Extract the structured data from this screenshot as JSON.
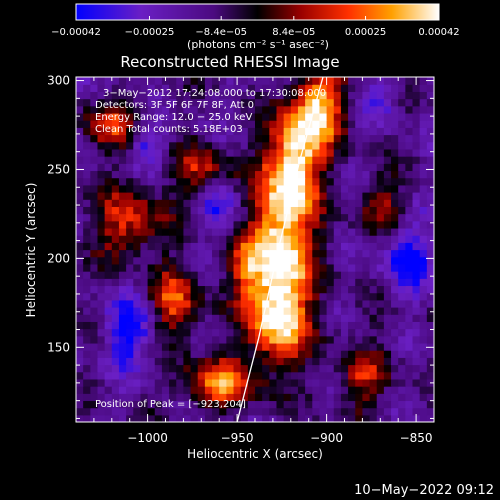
{
  "chart_data": {
    "type": "heatmap",
    "title": "Reconstructed RHESSI Image",
    "xlabel": "Heliocentric X (arcsec)",
    "ylabel": "Heliocentric Y (arcsec)",
    "xlim": [
      -1040,
      -840
    ],
    "ylim": [
      108,
      302
    ],
    "x_ticks": [
      -1000,
      -950,
      -900,
      -850
    ],
    "x_tick_labels": [
      "−1000",
      "−950",
      "−900",
      "−850"
    ],
    "y_ticks": [
      150,
      200,
      250,
      300
    ],
    "y_tick_labels": [
      "150",
      "200",
      "250",
      "300"
    ],
    "colorbar": {
      "range": [
        -0.00042,
        0.00042
      ],
      "tick_values": [
        -0.00042,
        -0.00025,
        -8.4e-05,
        8.4e-05,
        0.00025,
        0.00042
      ],
      "tick_labels": [
        "−0.00042",
        "−0.00025",
        "−8.4e−05",
        "8.4e−05",
        "0.00025",
        "0.00042"
      ],
      "unit_label": "(photons cm⁻² s⁻¹ asec⁻²)",
      "colors": [
        "#0000ff",
        "#6a1fc4",
        "#4b0a80",
        "#000000",
        "#7a0000",
        "#d10000",
        "#ff6a00",
        "#ffc200",
        "#ffffff"
      ]
    },
    "info_lines": [
      "3−May−2012 17:24:08.000 to 17:30:08.000",
      "Detectors: 3F 5F 6F 7F 8F, Att 0",
      "Energy Range: 12.0 − 25.0 keV",
      "Clean     Total counts: 5.18E+03"
    ],
    "peak_label": "Position of Peak = [−923,204]",
    "peak": [
      -923,
      204
    ],
    "limb_curve": [
      [
        -950,
        108
      ],
      [
        -938,
        155
      ],
      [
        -927,
        205
      ],
      [
        -915,
        255
      ],
      [
        -902,
        302
      ]
    ],
    "emission_features": [
      {
        "x": -925,
        "y": 210,
        "strength": 1.0,
        "sx": 12,
        "sy": 28
      },
      {
        "x": -918,
        "y": 255,
        "strength": 0.85,
        "sx": 10,
        "sy": 18
      },
      {
        "x": -905,
        "y": 285,
        "strength": 0.9,
        "sx": 10,
        "sy": 15
      },
      {
        "x": -928,
        "y": 165,
        "strength": 0.8,
        "sx": 12,
        "sy": 18
      },
      {
        "x": -960,
        "y": 130,
        "strength": 0.7,
        "sx": 14,
        "sy": 10
      },
      {
        "x": -1010,
        "y": 220,
        "strength": 0.55,
        "sx": 14,
        "sy": 14
      },
      {
        "x": -985,
        "y": 175,
        "strength": 0.6,
        "sx": 10,
        "sy": 14
      },
      {
        "x": -970,
        "y": 250,
        "strength": 0.45,
        "sx": 12,
        "sy": 10
      },
      {
        "x": -1020,
        "y": 275,
        "strength": 0.5,
        "sx": 12,
        "sy": 10
      },
      {
        "x": -880,
        "y": 140,
        "strength": 0.55,
        "sx": 10,
        "sy": 16
      },
      {
        "x": -870,
        "y": 230,
        "strength": 0.4,
        "sx": 10,
        "sy": 10
      },
      {
        "x": -945,
        "y": 195,
        "strength": 0.45,
        "sx": 8,
        "sy": 12
      }
    ],
    "negative_features": [
      {
        "x": -1010,
        "y": 160,
        "strength": 0.8,
        "sx": 10,
        "sy": 14
      },
      {
        "x": -1000,
        "y": 265,
        "strength": 0.6,
        "sx": 8,
        "sy": 8
      },
      {
        "x": -855,
        "y": 200,
        "strength": 0.75,
        "sx": 10,
        "sy": 14
      },
      {
        "x": -870,
        "y": 290,
        "strength": 0.5,
        "sx": 8,
        "sy": 8
      },
      {
        "x": -880,
        "y": 150,
        "strength": 0.55,
        "sx": 8,
        "sy": 8
      },
      {
        "x": -960,
        "y": 230,
        "strength": 0.5,
        "sx": 8,
        "sy": 10
      }
    ],
    "grid": false
  },
  "timestamp": "10−May−2022 09:12"
}
